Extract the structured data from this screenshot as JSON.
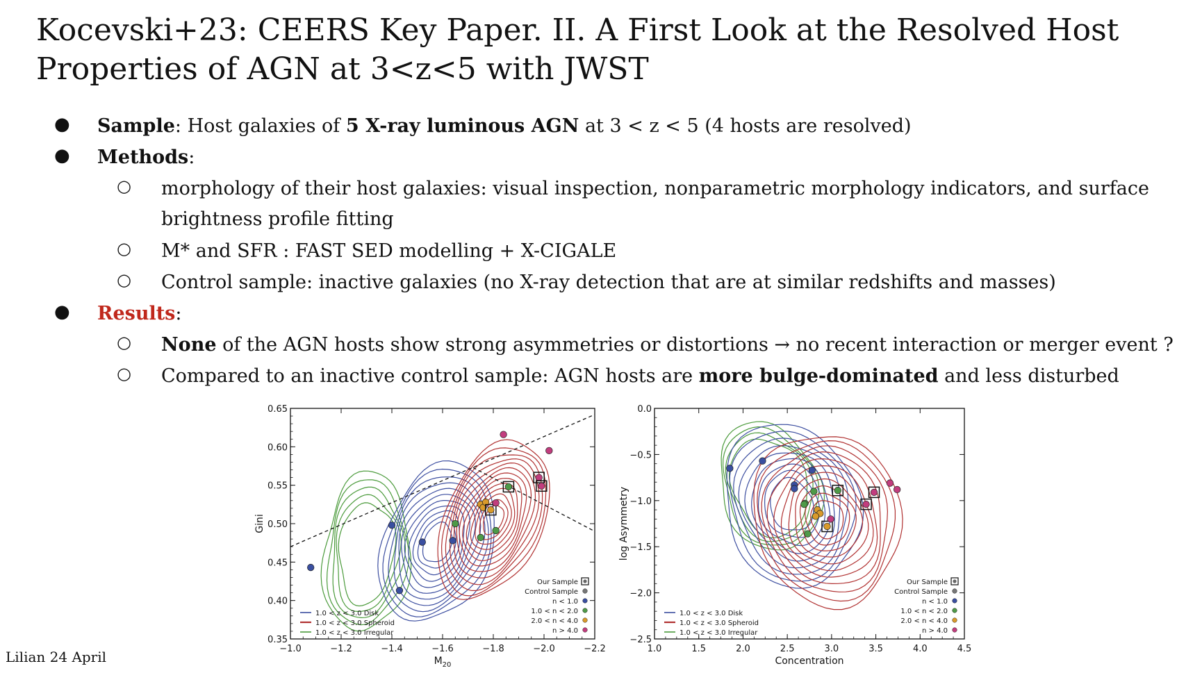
{
  "slide": {
    "title": "Kocevski+23: CEERS Key Paper. II. A First Look at the Resolved Host Properties of AGN at 3<z<5 with JWST",
    "bullets": {
      "sample_label": "Sample",
      "sample_pre": ": Host galaxies of ",
      "sample_bold": "5 X-ray luminous AGN",
      "sample_post": " at 3 < z < 5 (4 hosts are resolved)",
      "methods_label": "Methods",
      "methods_colon": ":",
      "methods_sub1_a": "morphology of their host galaxies: visual inspection, nonparametric morphology indicators, and surface",
      "methods_sub1_b": "brightness profile fitting",
      "methods_sub2": "M* and SFR : FAST SED modelling + X-CIGALE",
      "methods_sub3": "Control sample: inactive galaxies (no X-ray detection that are at similar redshifts and masses)",
      "results_label": "Results",
      "results_colon": ":",
      "results_sub1_bold": "None",
      "results_sub1_rest": " of the AGN hosts show strong asymmetries or distortions → no recent interaction or merger event ?",
      "results_sub2_pre": "Compared to an inactive control sample: AGN hosts are ",
      "results_sub2_bold": "more bulge-dominated",
      "results_sub2_post": " and less disturbed"
    },
    "footer": "Lilian 24 April"
  },
  "chart_data": [
    {
      "type": "scatter",
      "title": "",
      "xlabel": "M20",
      "ylabel": "Gini",
      "xlim": [
        -1.0,
        -2.2
      ],
      "ylim": [
        0.35,
        0.65
      ],
      "xticks": [
        "−1.0",
        "−1.2",
        "−1.4",
        "−1.6",
        "−1.8",
        "−2.0",
        "−2.2"
      ],
      "yticks": [
        "0.35",
        "0.40",
        "0.45",
        "0.50",
        "0.55",
        "0.60",
        "0.65"
      ],
      "contours": [
        {
          "name": "1.0 < z < 3.0 Disk",
          "color": "#3c4ea0"
        },
        {
          "name": "1.0 < z < 3.0 Spheroid",
          "color": "#b03030"
        },
        {
          "name": "1.0 < z < 3.0 Irregular",
          "color": "#4a9a3a"
        }
      ],
      "legend_points": [
        {
          "label": "Our Sample",
          "marker": "square"
        },
        {
          "label": "Control Sample",
          "color": "#777777"
        },
        {
          "label": "n < 1.0",
          "color": "#3a4fa0"
        },
        {
          "label": "1.0 < n < 2.0",
          "color": "#4e9a48"
        },
        {
          "label": "2.0 < n < 4.0",
          "color": "#d99a2b"
        },
        {
          "label": "n > 4.0",
          "color": "#c23d7e"
        }
      ],
      "points": [
        {
          "x": -1.08,
          "y": 0.443,
          "cls": "n<1.0"
        },
        {
          "x": -1.4,
          "y": 0.498,
          "cls": "n<1.0"
        },
        {
          "x": -1.52,
          "y": 0.476,
          "cls": "n<1.0"
        },
        {
          "x": -1.64,
          "y": 0.478,
          "cls": "n<1.0"
        },
        {
          "x": -1.43,
          "y": 0.413,
          "cls": "n<1.0"
        },
        {
          "x": -1.65,
          "y": 0.5,
          "cls": "1.0<n<2.0"
        },
        {
          "x": -1.75,
          "y": 0.482,
          "cls": "1.0<n<2.0"
        },
        {
          "x": -1.81,
          "y": 0.491,
          "cls": "1.0<n<2.0"
        },
        {
          "x": -1.86,
          "y": 0.548,
          "cls": "1.0<n<2.0",
          "ours": true
        },
        {
          "x": -1.75,
          "y": 0.525,
          "cls": "2.0<n<4.0"
        },
        {
          "x": -1.76,
          "y": 0.521,
          "cls": "2.0<n<4.0"
        },
        {
          "x": -1.77,
          "y": 0.528,
          "cls": "2.0<n<4.0"
        },
        {
          "x": -1.79,
          "y": 0.518,
          "cls": "2.0<n<4.0",
          "ours": true
        },
        {
          "x": -1.81,
          "y": 0.527,
          "cls": "n>4.0"
        },
        {
          "x": -1.84,
          "y": 0.616,
          "cls": "n>4.0"
        },
        {
          "x": -2.02,
          "y": 0.595,
          "cls": "n>4.0"
        },
        {
          "x": -1.98,
          "y": 0.56,
          "cls": "n>4.0",
          "ours": true
        },
        {
          "x": -1.99,
          "y": 0.549,
          "cls": "n>4.0",
          "ours": true
        }
      ]
    },
    {
      "type": "scatter",
      "title": "",
      "xlabel": "Concentration",
      "ylabel": "log Asymmetry",
      "xlim": [
        1.0,
        4.5
      ],
      "ylim": [
        -2.5,
        0.0
      ],
      "xticks": [
        "1.0",
        "1.5",
        "2.0",
        "2.5",
        "3.0",
        "3.5",
        "4.0",
        "4.5"
      ],
      "yticks": [
        "0.0",
        "−0.5",
        "−1.0",
        "−1.5",
        "−2.0",
        "−2.5"
      ],
      "contours": [
        {
          "name": "1.0 < z < 3.0 Disk",
          "color": "#3c4ea0"
        },
        {
          "name": "1.0 < z < 3.0 Spheroid",
          "color": "#b03030"
        },
        {
          "name": "1.0 < z < 3.0 Irregular",
          "color": "#4a9a3a"
        }
      ],
      "legend_points": [
        {
          "label": "Our Sample",
          "marker": "square"
        },
        {
          "label": "Control Sample",
          "color": "#777777"
        },
        {
          "label": "n < 1.0",
          "color": "#3a4fa0"
        },
        {
          "label": "1.0 < n < 2.0",
          "color": "#4e9a48"
        },
        {
          "label": "2.0 < n < 4.0",
          "color": "#d99a2b"
        },
        {
          "label": "n > 4.0",
          "color": "#c23d7e"
        }
      ],
      "points": [
        {
          "x": 1.85,
          "y": -0.65,
          "cls": "n<1.0"
        },
        {
          "x": 2.22,
          "y": -0.57,
          "cls": "n<1.0"
        },
        {
          "x": 2.78,
          "y": -0.67,
          "cls": "n<1.0"
        },
        {
          "x": 2.58,
          "y": -0.83,
          "cls": "n<1.0"
        },
        {
          "x": 2.58,
          "y": -0.87,
          "cls": "n<1.0"
        },
        {
          "x": 2.8,
          "y": -0.9,
          "cls": "1.0<n<2.0"
        },
        {
          "x": 2.7,
          "y": -1.03,
          "cls": "1.0<n<2.0"
        },
        {
          "x": 2.69,
          "y": -1.04,
          "cls": "1.0<n<2.0"
        },
        {
          "x": 2.73,
          "y": -1.36,
          "cls": "1.0<n<2.0"
        },
        {
          "x": 3.07,
          "y": -0.89,
          "cls": "1.0<n<2.0",
          "ours": true
        },
        {
          "x": 2.84,
          "y": -1.1,
          "cls": "2.0<n<4.0"
        },
        {
          "x": 2.87,
          "y": -1.14,
          "cls": "2.0<n<4.0"
        },
        {
          "x": 2.82,
          "y": -1.17,
          "cls": "2.0<n<4.0"
        },
        {
          "x": 2.95,
          "y": -1.28,
          "cls": "2.0<n<4.0",
          "ours": true
        },
        {
          "x": 2.99,
          "y": -1.2,
          "cls": "n>4.0"
        },
        {
          "x": 3.66,
          "y": -0.81,
          "cls": "n>4.0"
        },
        {
          "x": 3.74,
          "y": -0.88,
          "cls": "n>4.0"
        },
        {
          "x": 3.48,
          "y": -0.91,
          "cls": "n>4.0",
          "ours": true
        },
        {
          "x": 3.39,
          "y": -1.04,
          "cls": "n>4.0",
          "ours": true
        }
      ]
    }
  ]
}
